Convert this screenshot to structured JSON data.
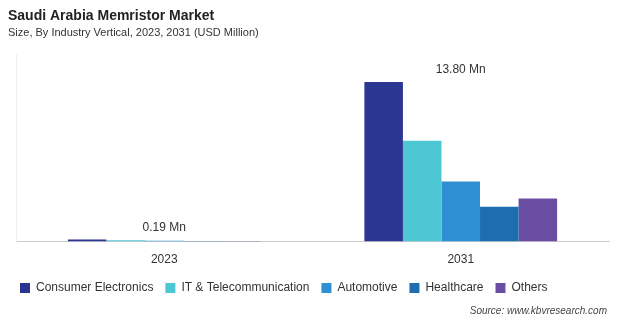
{
  "chart_data": {
    "type": "bar",
    "title": "Saudi Arabia Memristor Market",
    "subtitle": "Size, By Industry Vertical, 2023, 2031 (USD Million)",
    "categories": [
      "2023",
      "2031"
    ],
    "series": [
      {
        "name": "Consumer Electronics",
        "color": "#2b3592",
        "values": [
          0.07,
          5.53
        ]
      },
      {
        "name": "IT & Telecommunication",
        "color": "#4cc7d3",
        "values": [
          0.05,
          3.49
        ]
      },
      {
        "name": "Automotive",
        "color": "#2e8fd3",
        "values": [
          0.03,
          2.08
        ]
      },
      {
        "name": "Healthcare",
        "color": "#1e6db0",
        "values": [
          0.02,
          1.21
        ]
      },
      {
        "name": "Others",
        "color": "#6a4ea3",
        "values": [
          0.02,
          1.49
        ]
      }
    ],
    "annotations": [
      {
        "category": "2023",
        "text": "0.19 Mn"
      },
      {
        "category": "2031",
        "text": "13.80 Mn"
      }
    ],
    "ylim": [
      0,
      6.5
    ],
    "grid": false,
    "legend": "bottom",
    "tick_labels": "x",
    "data_labels": false,
    "source": "Source: www.kbvresearch.com"
  }
}
